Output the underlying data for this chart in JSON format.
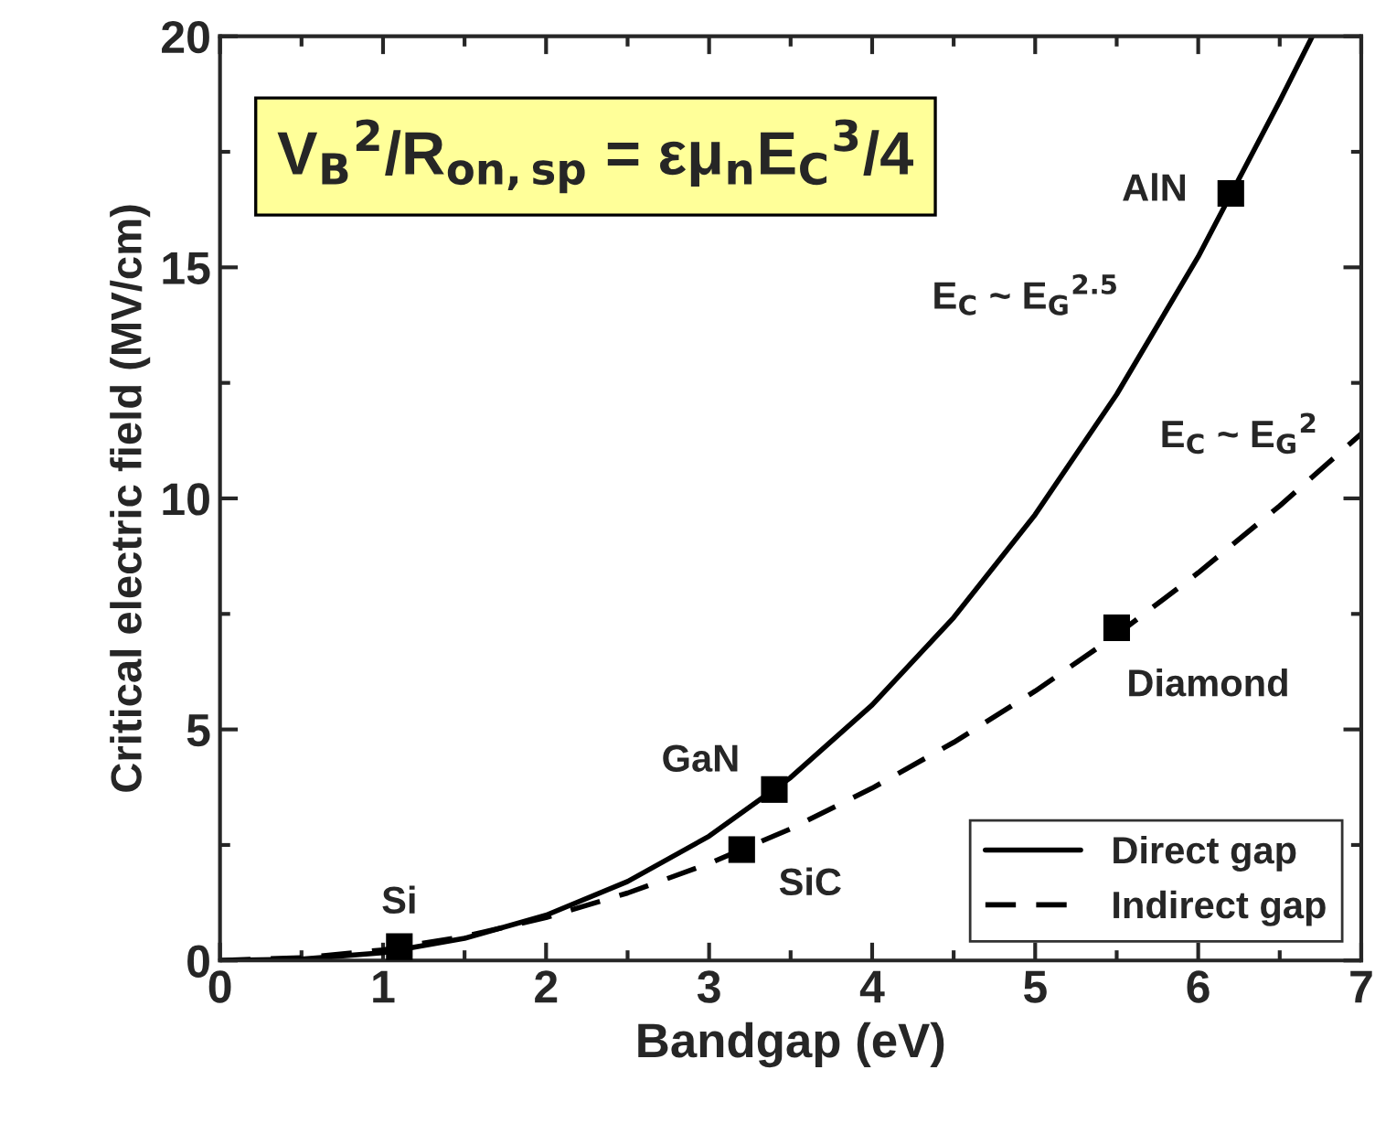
{
  "chart_data": {
    "type": "line",
    "xlabel": "Bandgap (eV)",
    "ylabel": "Critical electric field (MV/cm)",
    "xlim": [
      0,
      7
    ],
    "ylim": [
      0,
      20
    ],
    "xticks": [
      0,
      1,
      2,
      3,
      4,
      5,
      6,
      7
    ],
    "yticks": [
      0,
      5,
      10,
      15,
      20
    ],
    "grid": false,
    "legend": "bottom right",
    "marker": "none",
    "series": [
      {
        "name": "Direct gap",
        "color": "#000000",
        "line_style": "solid",
        "x": [
          0,
          0.5,
          1,
          1.5,
          2,
          2.5,
          3,
          3.5,
          4,
          4.5,
          5,
          5.5,
          6,
          6.5,
          6.7
        ],
        "values": [
          0,
          0.03,
          0.17,
          0.48,
          0.98,
          1.71,
          2.69,
          3.96,
          5.53,
          7.42,
          9.65,
          12.25,
          15.23,
          18.6,
          20.0
        ]
      },
      {
        "name": "Indirect gap",
        "color": "#000000",
        "line_style": "dashed",
        "x": [
          0,
          0.5,
          1,
          1.5,
          2,
          2.5,
          3,
          3.5,
          4,
          4.5,
          5,
          5.5,
          6,
          6.5,
          7
        ],
        "values": [
          0,
          0.06,
          0.23,
          0.52,
          0.93,
          1.46,
          2.1,
          2.85,
          3.73,
          4.72,
          5.83,
          7.05,
          8.39,
          9.84,
          11.4
        ]
      },
      {
        "type": "scatter",
        "marker": "square",
        "color": "#000000",
        "x": [
          1.1,
          3.4,
          3.2,
          5.5,
          6.2
        ],
        "values": [
          0.3,
          3.7,
          2.4,
          7.2,
          16.6
        ]
      }
    ],
    "annotations": [
      "V$_{B}$$^{2}$/R$_{on,sp}$ = εμ$_{n}$E$_{C}$$^{3}$/4",
      "E$_{C}$ ~ E$_{G}$$^{2.5}$",
      {
        "text": "E$_{C}$ ~ E$_{G}$$^{2}$",
        "x": 6.5,
        "y": 9.84
      },
      {
        "text": "Si",
        "x": 1.1,
        "y": 0.3
      },
      {
        "text": "GaN",
        "x": 3.4,
        "y": 3.7
      },
      {
        "text": "SiC",
        "x": 3.2,
        "y": 2.4
      },
      {
        "text": "Diamond",
        "x": 5.5,
        "y": 7.2
      },
      {
        "text": "AlN",
        "x": 6.2,
        "y": 16.6
      }
    ]
  }
}
